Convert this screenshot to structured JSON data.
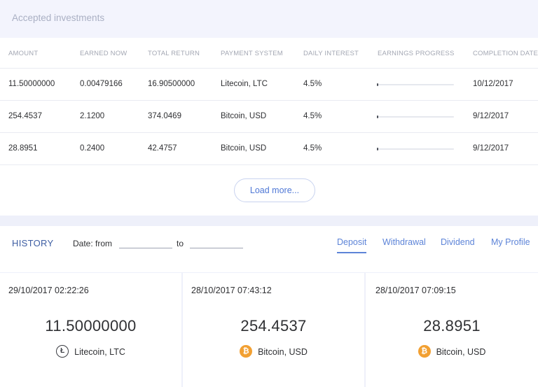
{
  "investments": {
    "title": "Accepted investments",
    "columns": [
      "AMOUNT",
      "EARNED NOW",
      "TOTAL RETURN",
      "PAYMENT SYSTEM",
      "DAILY INTEREST",
      "EARNINGS PROGRESS",
      "COMPLETION DATE"
    ],
    "rows": [
      {
        "amount": "11.50000000",
        "earned": "0.00479166",
        "total": "16.90500000",
        "payment": "Litecoin, LTC",
        "interest": "4.5%",
        "progress": 0.005,
        "completion": "10/12/2017"
      },
      {
        "amount": "254.4537",
        "earned": "2.1200",
        "total": "374.0469",
        "payment": "Bitcoin, USD",
        "interest": "4.5%",
        "progress": 0.02,
        "completion": "9/12/2017"
      },
      {
        "amount": "28.8951",
        "earned": "0.2400",
        "total": "42.4757",
        "payment": "Bitcoin, USD",
        "interest": "4.5%",
        "progress": 0.02,
        "completion": "9/12/2017"
      }
    ],
    "load_more_label": "Load more..."
  },
  "history": {
    "title": "HISTORY",
    "date_from_label": "Date: from",
    "date_to_label": "to",
    "date_from_value": "",
    "date_to_value": "",
    "tabs": [
      "Deposit",
      "Withdrawal",
      "Dividend",
      "My Profile"
    ],
    "active_tab": "Deposit",
    "cards": [
      {
        "datetime": "29/10/2017 02:22:26",
        "amount": "11.50000000",
        "payment": "Litecoin, LTC",
        "icon": "litecoin-icon"
      },
      {
        "datetime": "28/10/2017 07:43:12",
        "amount": "254.4537",
        "payment": "Bitcoin, USD",
        "icon": "bitcoin-icon"
      },
      {
        "datetime": "28/10/2017 07:09:15",
        "amount": "28.8951",
        "payment": "Bitcoin, USD",
        "icon": "bitcoin-icon"
      }
    ]
  },
  "colors": {
    "accent": "#5d84d8",
    "history_title": "#3e5ea3",
    "bitcoin": "#f2a032",
    "page_bg": "#eef0fa"
  }
}
